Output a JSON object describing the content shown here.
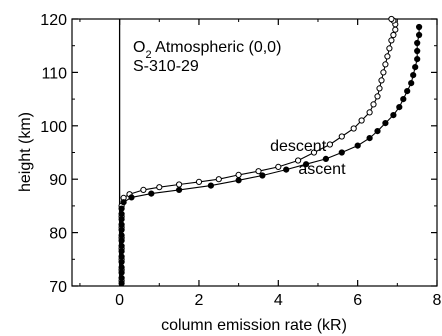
{
  "chart_data": {
    "type": "line",
    "annotation": {
      "title_main": "O",
      "title_sub": "2",
      "title_rest": " Atmospheric (0,0)",
      "flight": "S-310-29"
    },
    "xlabel": "column emission rate (kR)",
    "ylabel": "height (km)",
    "xlim": [
      -1.2,
      8
    ],
    "ylim": [
      70,
      120
    ],
    "xticks": [
      0,
      2,
      4,
      6,
      8
    ],
    "xtick_labels": [
      "0",
      "2",
      "4",
      "6",
      "8"
    ],
    "yticks": [
      70,
      80,
      90,
      100,
      110,
      120
    ],
    "ytick_labels": [
      "70",
      "80",
      "90",
      "100",
      "110",
      "120"
    ],
    "grid": false,
    "series": [
      {
        "name": "descent",
        "marker": "open-circle",
        "x": [
          0.05,
          0.05,
          0.05,
          0.05,
          0.05,
          0.05,
          0.05,
          0.05,
          0.1,
          0.25,
          0.6,
          1.0,
          1.5,
          2.0,
          2.5,
          3.0,
          3.5,
          4.0,
          4.5,
          4.9,
          5.3,
          5.6,
          5.9,
          6.1,
          6.3,
          6.4,
          6.5,
          6.55,
          6.6,
          6.65,
          6.7,
          6.75,
          6.8,
          6.85,
          6.9,
          6.95,
          6.95,
          6.9,
          6.85
        ],
        "y": [
          71,
          73,
          75,
          77,
          79,
          81,
          83,
          85,
          86.5,
          87.2,
          88.0,
          88.5,
          89.0,
          89.5,
          90.0,
          90.8,
          91.5,
          92.3,
          93.5,
          95.0,
          96.5,
          98.0,
          99.5,
          101.0,
          102.5,
          104.0,
          105.5,
          107.0,
          108.5,
          110.0,
          111.5,
          113.0,
          114.5,
          116.0,
          117.0,
          118.0,
          119.0,
          119.7,
          120.0
        ]
      },
      {
        "name": "ascent",
        "marker": "filled-circle",
        "x": [
          0.05,
          0.05,
          0.05,
          0.05,
          0.05,
          0.05,
          0.05,
          0.05,
          0.05,
          0.05,
          0.05,
          0.05,
          0.05,
          0.05,
          0.05,
          0.1,
          0.3,
          0.8,
          1.5,
          2.3,
          3.0,
          3.6,
          4.2,
          4.7,
          5.2,
          5.6,
          6.0,
          6.3,
          6.5,
          6.7,
          6.9,
          7.05,
          7.15,
          7.25,
          7.35,
          7.4,
          7.45,
          7.5,
          7.5,
          7.5,
          7.55,
          7.55
        ],
        "y": [
          70.5,
          71.5,
          72.5,
          73.5,
          74.5,
          75.5,
          76.5,
          77.5,
          78.5,
          79.5,
          80.5,
          81.5,
          82.5,
          83.5,
          84.5,
          85.7,
          86.6,
          87.3,
          88.0,
          88.8,
          89.8,
          90.7,
          91.8,
          92.8,
          93.8,
          95.0,
          96.3,
          97.7,
          99.0,
          100.5,
          102.0,
          103.5,
          105.0,
          106.5,
          108.0,
          109.5,
          111.0,
          112.5,
          114.0,
          115.5,
          117.0,
          118.5
        ]
      }
    ],
    "reference_line": {
      "x": 0
    },
    "series_labels": [
      {
        "text": "descent",
        "x": 4.5,
        "y": 95.3
      },
      {
        "text": "ascent",
        "x": 5.1,
        "y": 91.0
      }
    ]
  }
}
